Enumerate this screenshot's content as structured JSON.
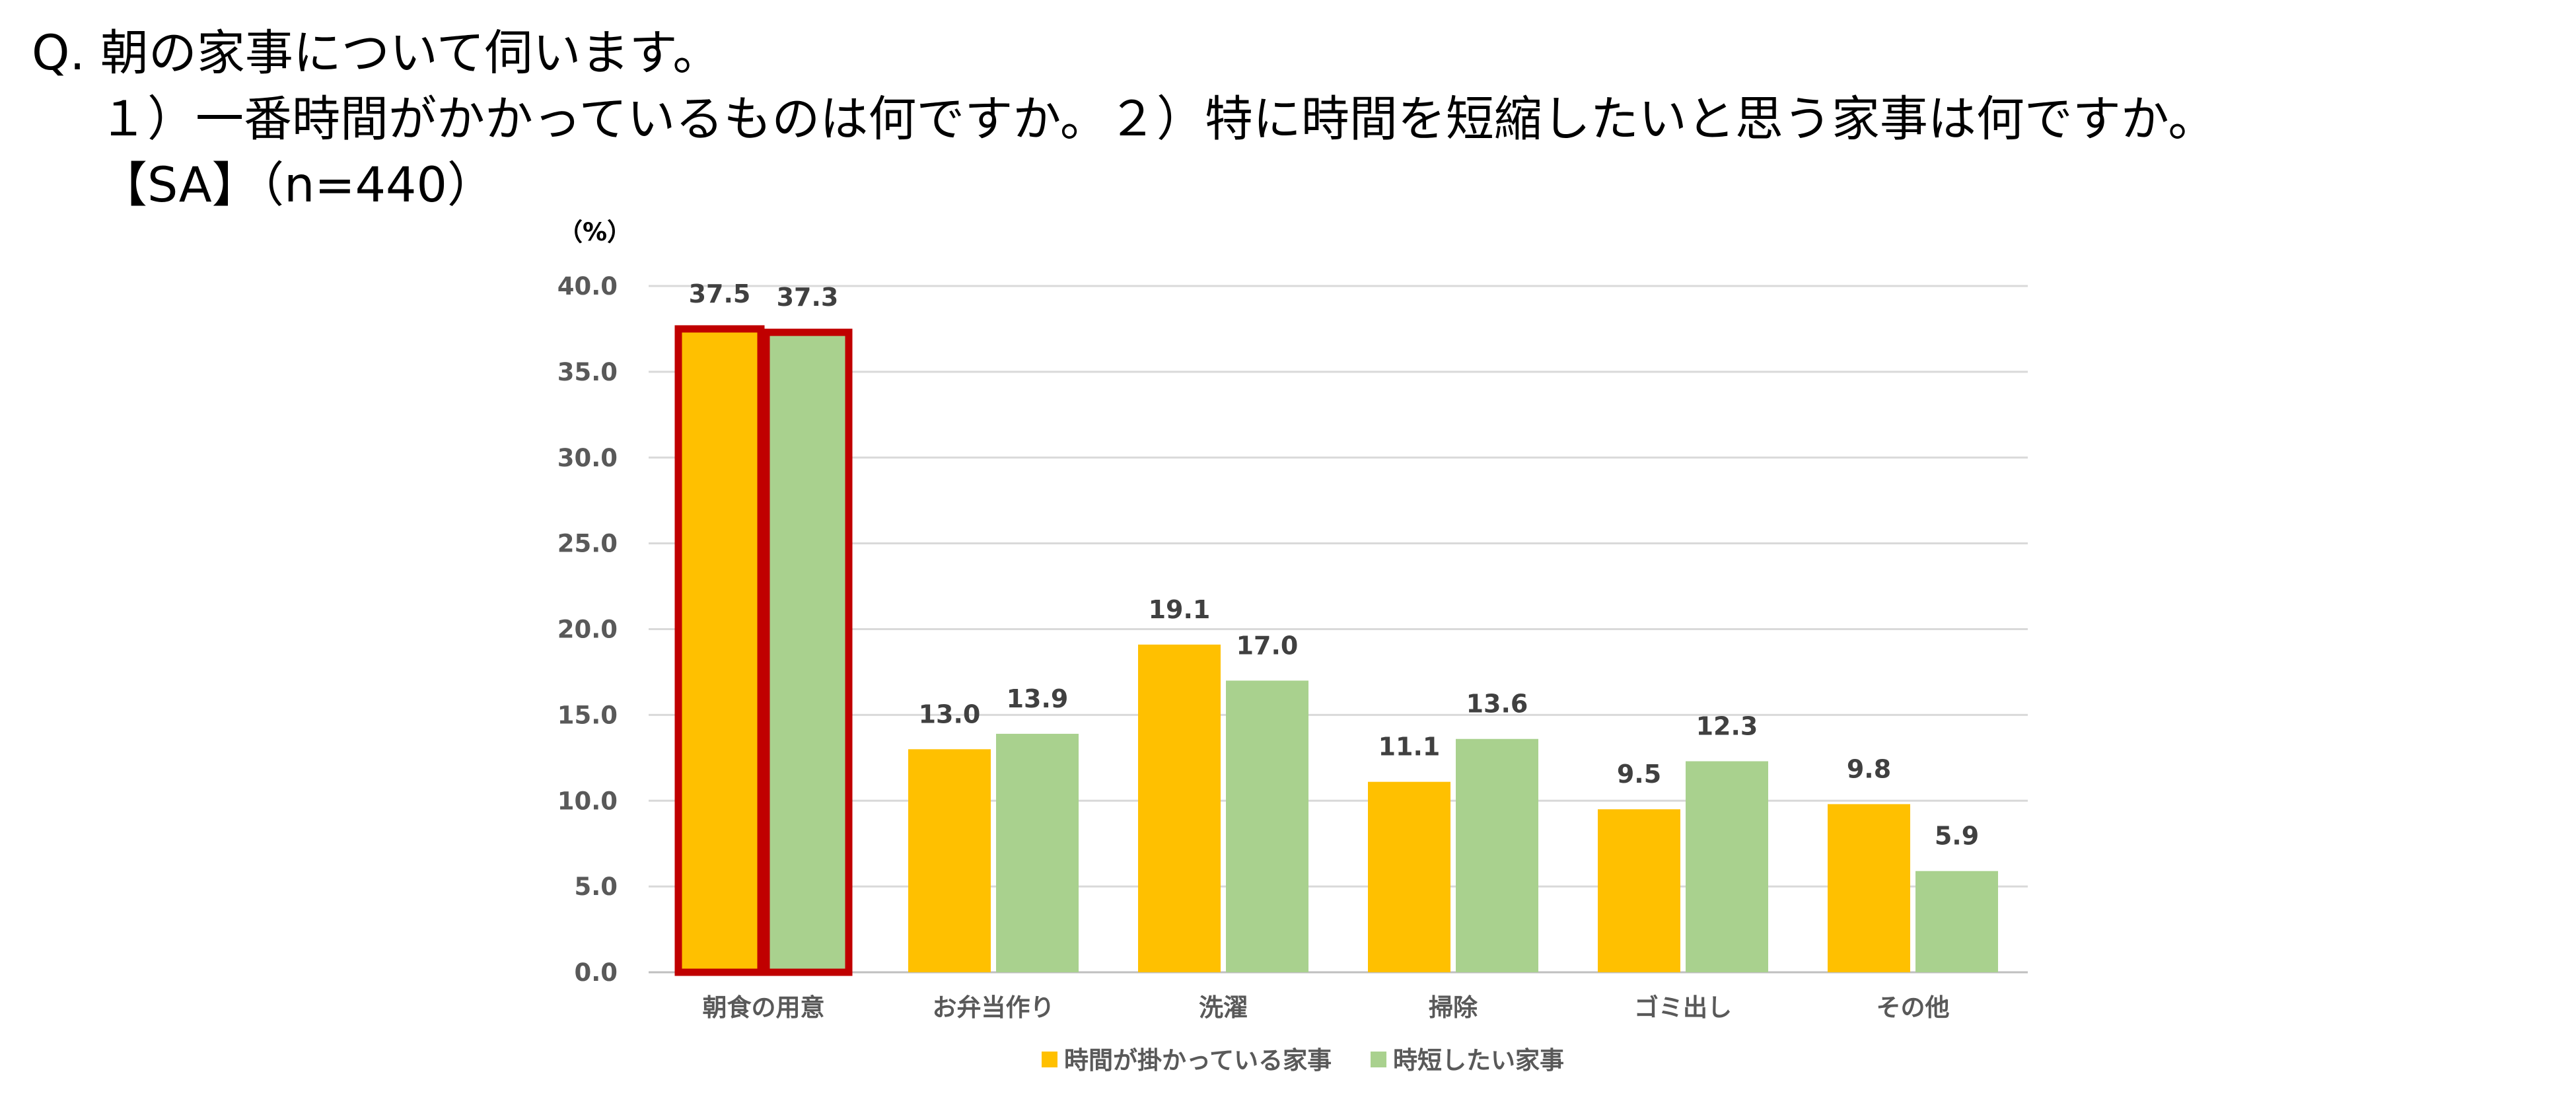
{
  "question": {
    "line1": "Q. 朝の家事について伺います。",
    "line2": "１）一番時間がかかっているものは何ですか。２）特に時間を短縮したいと思う家事は何ですか。",
    "line3": "【SA】（n=440）"
  },
  "chart_data": {
    "type": "bar",
    "ylabel": "（%）",
    "ylim": [
      0,
      40
    ],
    "yticks": [
      "0.0",
      "5.0",
      "10.0",
      "15.0",
      "20.0",
      "25.0",
      "30.0",
      "35.0",
      "40.0"
    ],
    "grid": true,
    "legend_position": "bottom",
    "categories": [
      "朝食の用意",
      "お弁当作り",
      "洗濯",
      "掃除",
      "ゴミ出し",
      "その他"
    ],
    "series": [
      {
        "name": "時間が掛かっている家事",
        "color": "#FFC000",
        "values": [
          37.5,
          13.0,
          19.1,
          11.1,
          9.5,
          9.8
        ],
        "labels": [
          "37.5",
          "13.0",
          "19.1",
          "11.1",
          "9.5",
          "9.8"
        ]
      },
      {
        "name": "時短したい家事",
        "color": "#A9D18E",
        "values": [
          37.3,
          13.9,
          17.0,
          13.6,
          12.3,
          5.9
        ],
        "labels": [
          "37.3",
          "13.9",
          "17.0",
          "13.6",
          "12.3",
          "5.9"
        ]
      }
    ],
    "highlight": {
      "category": "朝食の用意",
      "color": "#C00000"
    }
  }
}
